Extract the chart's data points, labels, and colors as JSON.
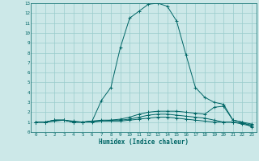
{
  "xlabel": "Humidex (Indice chaleur)",
  "ylabel": "",
  "bg_color": "#cce8e8",
  "grid_color": "#99cccc",
  "line_color": "#006666",
  "xlim": [
    -0.5,
    23.5
  ],
  "ylim": [
    0,
    13
  ],
  "xticks": [
    0,
    1,
    2,
    3,
    4,
    5,
    6,
    7,
    8,
    9,
    10,
    11,
    12,
    13,
    14,
    15,
    16,
    17,
    18,
    19,
    20,
    21,
    22,
    23
  ],
  "yticks": [
    0,
    1,
    2,
    3,
    4,
    5,
    6,
    7,
    8,
    9,
    10,
    11,
    12,
    13
  ],
  "curves": [
    {
      "x": [
        0,
        1,
        2,
        3,
        4,
        5,
        6,
        7,
        8,
        9,
        10,
        11,
        12,
        13,
        14,
        15,
        16,
        17,
        18,
        19,
        20,
        21,
        22,
        23
      ],
      "y": [
        1,
        1,
        1.2,
        1.2,
        1.1,
        1.0,
        1.1,
        3.2,
        4.5,
        8.5,
        11.5,
        12.2,
        12.9,
        13.0,
        12.7,
        11.2,
        7.8,
        4.5,
        3.5,
        3.0,
        2.8,
        1.2,
        1.0,
        0.5
      ]
    },
    {
      "x": [
        0,
        1,
        2,
        3,
        4,
        5,
        6,
        7,
        8,
        9,
        10,
        11,
        12,
        13,
        14,
        15,
        16,
        17,
        18,
        19,
        20,
        21,
        22,
        23
      ],
      "y": [
        1,
        1,
        1.2,
        1.2,
        1.0,
        1.0,
        1.1,
        1.2,
        1.2,
        1.3,
        1.5,
        1.8,
        2.0,
        2.1,
        2.1,
        2.1,
        2.0,
        1.9,
        1.8,
        2.5,
        2.6,
        1.2,
        1.0,
        0.8
      ]
    },
    {
      "x": [
        0,
        1,
        2,
        3,
        4,
        5,
        6,
        7,
        8,
        9,
        10,
        11,
        12,
        13,
        14,
        15,
        16,
        17,
        18,
        19,
        20,
        21,
        22,
        23
      ],
      "y": [
        1,
        1,
        1.2,
        1.2,
        1.0,
        1.0,
        1.1,
        1.1,
        1.2,
        1.2,
        1.3,
        1.5,
        1.7,
        1.8,
        1.8,
        1.7,
        1.6,
        1.5,
        1.4,
        1.2,
        1.0,
        1.0,
        0.9,
        0.7
      ]
    },
    {
      "x": [
        0,
        1,
        2,
        3,
        4,
        5,
        6,
        7,
        8,
        9,
        10,
        11,
        12,
        13,
        14,
        15,
        16,
        17,
        18,
        19,
        20,
        21,
        22,
        23
      ],
      "y": [
        1,
        1,
        1.1,
        1.2,
        1.0,
        1.0,
        1.0,
        1.1,
        1.1,
        1.1,
        1.2,
        1.3,
        1.4,
        1.5,
        1.5,
        1.4,
        1.3,
        1.2,
        1.1,
        1.0,
        1.0,
        1.0,
        0.8,
        0.6
      ]
    }
  ]
}
